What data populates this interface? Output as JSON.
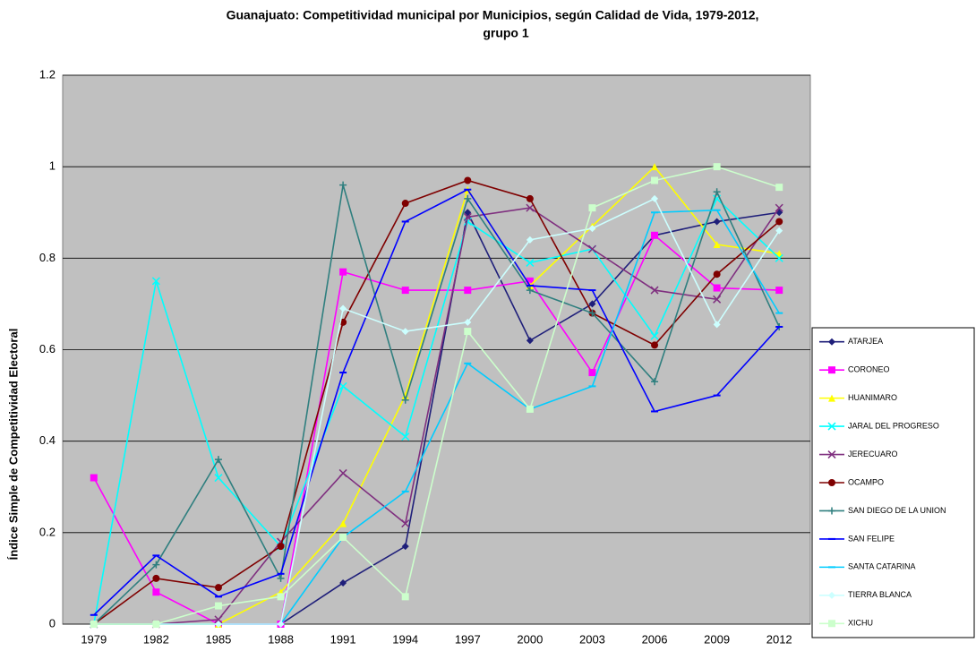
{
  "chart_data": {
    "type": "line",
    "title": "Guanajuato: Competitividad municipal por Municipios, según Calidad de Vida, 1979-2012,",
    "subtitle": "grupo 1",
    "y_label": "Índice Simple de Competitividad Electoral",
    "categories": [
      "1979",
      "1982",
      "1985",
      "1988",
      "1991",
      "1994",
      "1997",
      "2000",
      "2003",
      "2006",
      "2009",
      "2012"
    ],
    "ylim": [
      0,
      1.2
    ],
    "yticks": [
      0,
      0.2,
      0.4,
      0.6,
      0.8,
      1,
      1.2
    ],
    "grid": true,
    "legend": "right",
    "background": "#c0c0c0",
    "series": [
      {
        "name": "ATARJEA",
        "color": "#1f1f7a",
        "marker": "diamond",
        "values": [
          0,
          0,
          0,
          0,
          0.09,
          0.17,
          0.9,
          0.62,
          0.7,
          0.85,
          0.88,
          0.9
        ]
      },
      {
        "name": "CORONEO",
        "color": "#ff00ff",
        "marker": "square",
        "values": [
          0.32,
          0.07,
          0,
          0,
          0.77,
          0.73,
          0.73,
          0.75,
          0.55,
          0.85,
          0.735,
          0.73
        ]
      },
      {
        "name": "HUANIMARO",
        "color": "#ffff00",
        "marker": "triangle",
        "values": [
          0,
          0,
          0,
          0.07,
          0.22,
          0.5,
          0.95,
          0.74,
          0.87,
          1.0,
          0.83,
          0.81
        ]
      },
      {
        "name": "JARAL DEL PROGRESO",
        "color": "#00ffff",
        "marker": "x",
        "values": [
          0,
          0.75,
          0.32,
          0.17,
          0.52,
          0.41,
          0.88,
          0.79,
          0.82,
          0.63,
          0.93,
          0.8
        ]
      },
      {
        "name": "JERECUARO",
        "color": "#7f2f7f",
        "marker": "x",
        "values": [
          0,
          0,
          0.01,
          0.18,
          0.33,
          0.22,
          0.89,
          0.91,
          0.82,
          0.73,
          0.71,
          0.91
        ]
      },
      {
        "name": "OCAMPO",
        "color": "#7f0000",
        "marker": "circle",
        "values": [
          0,
          0.1,
          0.08,
          0.17,
          0.66,
          0.92,
          0.97,
          0.93,
          0.68,
          0.61,
          0.765,
          0.88
        ]
      },
      {
        "name": "SAN DIEGO DE LA UNION",
        "color": "#2f7f7f",
        "marker": "plus",
        "values": [
          0,
          0.13,
          0.36,
          0.1,
          0.96,
          0.49,
          0.93,
          0.73,
          0.68,
          0.53,
          0.945,
          0.65
        ]
      },
      {
        "name": "SAN FELIPE",
        "color": "#0000ff",
        "marker": "dash",
        "values": [
          0.02,
          0.15,
          0.06,
          0.11,
          0.55,
          0.88,
          0.95,
          0.74,
          0.73,
          0.465,
          0.5,
          0.65
        ]
      },
      {
        "name": "SANTA CATARINA",
        "color": "#00ccff",
        "marker": "dash",
        "values": [
          0,
          0,
          0,
          0,
          0.19,
          0.29,
          0.57,
          0.47,
          0.52,
          0.9,
          0.905,
          0.68
        ]
      },
      {
        "name": "TIERRA BLANCA",
        "color": "#ccffff",
        "marker": "diamond",
        "values": [
          0,
          0,
          0,
          0,
          0.69,
          0.64,
          0.66,
          0.84,
          0.865,
          0.93,
          0.655,
          0.86
        ]
      },
      {
        "name": "XICHU",
        "color": "#ccffcc",
        "marker": "square",
        "values": [
          0,
          0,
          0.04,
          0.06,
          0.19,
          0.06,
          0.64,
          0.47,
          0.91,
          0.97,
          1.0,
          0.955
        ]
      }
    ]
  }
}
